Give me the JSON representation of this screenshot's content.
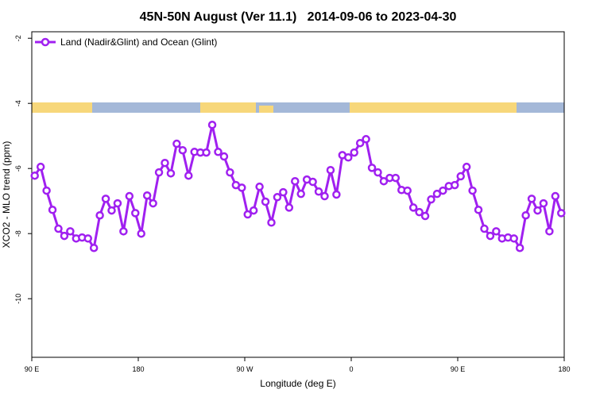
{
  "chart_data": {
    "type": "line",
    "title": "45N-50N August (Ver 11.1)   2014-09-06 to 2023-04-30",
    "x_label": "Longitude (deg E)",
    "y_label": "XCO2 - MLO trend (ppm)",
    "xlim": [
      90,
      540
    ],
    "xticks": [
      {
        "value": 90,
        "label": "90 E"
      },
      {
        "value": 180,
        "label": "180"
      },
      {
        "value": 270,
        "label": "90 W"
      },
      {
        "value": 360,
        "label": "0"
      },
      {
        "value": 450,
        "label": "90 E"
      },
      {
        "value": 540,
        "label": "180"
      }
    ],
    "ylim": [
      -11.8,
      -1.8
    ],
    "yticks": [
      -2,
      -4,
      -6,
      -8,
      -10
    ],
    "legend": "top-left",
    "x": [
      92.5,
      97.5,
      102.5,
      107.5,
      112.5,
      117.5,
      122.5,
      127.5,
      132.5,
      137.5,
      142.5,
      147.5,
      152.5,
      157.5,
      162.5,
      167.5,
      172.5,
      177.5,
      182.5,
      187.5,
      192.5,
      197.5,
      202.5,
      207.5,
      212.5,
      217.5,
      222.5,
      227.5,
      232.5,
      237.5,
      242.5,
      247.5,
      252.5,
      257.5,
      262.5,
      267.5,
      272.5,
      277.5,
      282.5,
      287.5,
      292.5,
      297.5,
      302.5,
      307.5,
      312.5,
      317.5,
      322.5,
      327.5,
      332.5,
      337.5,
      342.5,
      347.5,
      352.5,
      357.5,
      362.5,
      367.5,
      372.5,
      377.5,
      382.5,
      387.5,
      392.5,
      397.5,
      402.5,
      407.5,
      412.5,
      417.5,
      422.5,
      427.5,
      432.5,
      437.5,
      442.5,
      447.5,
      452.5,
      457.5,
      462.5,
      467.5,
      472.5,
      477.5,
      482.5,
      487.5,
      492.5,
      497.5,
      502.5,
      507.5,
      512.5,
      517.5,
      522.5,
      527.5,
      532.5,
      537.5
    ],
    "series": [
      {
        "name": "Land (Nadir&Glint) and Ocean (Glint)",
        "color": "#a020f0",
        "values": [
          -6.22,
          -5.95,
          -6.68,
          -7.27,
          -7.85,
          -8.07,
          -7.93,
          -8.15,
          -8.12,
          -8.15,
          -8.44,
          -7.44,
          -6.93,
          -7.29,
          -7.07,
          -7.93,
          -6.85,
          -7.37,
          -8.0,
          -6.83,
          -7.07,
          -6.12,
          -5.83,
          -6.15,
          -5.24,
          -5.44,
          -6.22,
          -5.49,
          -5.51,
          -5.51,
          -4.66,
          -5.49,
          -5.63,
          -6.12,
          -6.51,
          -6.59,
          -7.41,
          -7.29,
          -6.56,
          -7.02,
          -7.66,
          -6.88,
          -6.73,
          -7.2,
          -6.39,
          -6.78,
          -6.34,
          -6.41,
          -6.71,
          -6.85,
          -6.05,
          -6.8,
          -5.59,
          -5.66,
          -5.51,
          -5.22,
          -5.1,
          -5.98,
          -6.12,
          -6.39,
          -6.29,
          -6.29,
          -6.66,
          -6.68,
          -7.2,
          -7.34,
          -7.46,
          -6.95,
          -6.78,
          -6.68,
          -6.54,
          -6.51,
          -6.24,
          -5.95,
          -6.68,
          -7.27,
          -7.85,
          -8.07,
          -7.93,
          -8.15,
          -8.12,
          -8.15,
          -8.44,
          -7.44,
          -6.93,
          -7.29,
          -7.07,
          -7.93,
          -6.85,
          -7.37
        ]
      }
    ]
  }
}
